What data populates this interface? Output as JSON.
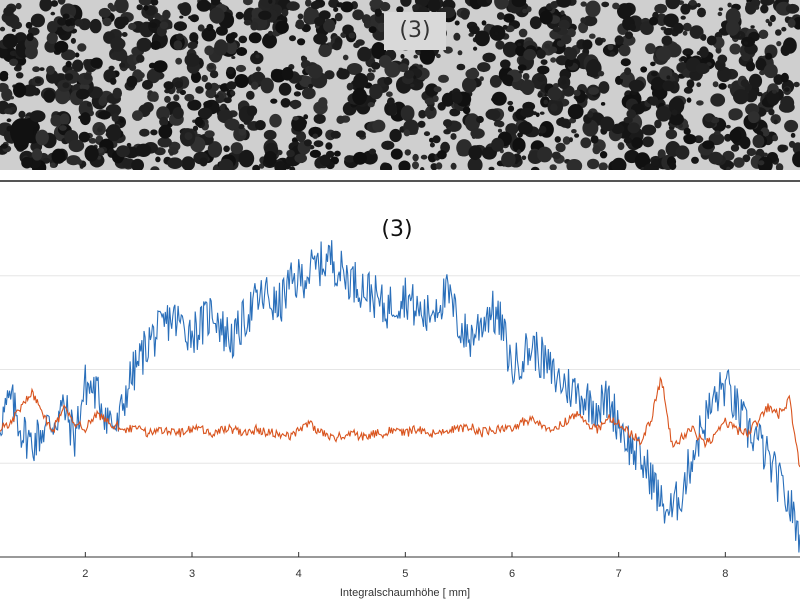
{
  "image_panel": {
    "label": "(3)"
  },
  "chart_data": {
    "type": "line",
    "title": "(3)",
    "xlabel": "Integralschaumhöhe [ mm]",
    "ylabel": "",
    "xlim": [
      1.2,
      8.7
    ],
    "xticks": [
      2,
      3,
      4,
      5,
      6,
      7,
      8
    ],
    "ylim": [
      0,
      1
    ],
    "grid": "horizontal",
    "series": [
      {
        "color": "#2a6fba",
        "x": [
          1.2,
          1.3,
          1.4,
          1.5,
          1.6,
          1.7,
          1.8,
          1.9,
          2.0,
          2.1,
          2.2,
          2.3,
          2.4,
          2.5,
          2.6,
          2.7,
          2.8,
          2.9,
          3.0,
          3.1,
          3.2,
          3.3,
          3.4,
          3.5,
          3.6,
          3.7,
          3.8,
          3.9,
          4.0,
          4.1,
          4.2,
          4.3,
          4.4,
          4.5,
          4.6,
          4.7,
          4.8,
          4.9,
          5.0,
          5.1,
          5.2,
          5.3,
          5.4,
          5.5,
          5.6,
          5.7,
          5.8,
          5.9,
          6.0,
          6.1,
          6.2,
          6.3,
          6.4,
          6.5,
          6.6,
          6.7,
          6.8,
          6.9,
          7.0,
          7.1,
          7.2,
          7.3,
          7.4,
          7.5,
          7.6,
          7.7,
          7.8,
          7.9,
          8.0,
          8.1,
          8.2,
          8.3,
          8.4,
          8.5,
          8.6,
          8.7
        ],
        "y": [
          0.36,
          0.42,
          0.34,
          0.3,
          0.34,
          0.36,
          0.4,
          0.32,
          0.46,
          0.44,
          0.38,
          0.34,
          0.46,
          0.52,
          0.58,
          0.6,
          0.64,
          0.62,
          0.6,
          0.62,
          0.66,
          0.6,
          0.58,
          0.64,
          0.68,
          0.7,
          0.66,
          0.72,
          0.74,
          0.76,
          0.78,
          0.8,
          0.76,
          0.74,
          0.72,
          0.7,
          0.66,
          0.68,
          0.7,
          0.66,
          0.64,
          0.68,
          0.7,
          0.62,
          0.58,
          0.62,
          0.66,
          0.62,
          0.5,
          0.54,
          0.56,
          0.52,
          0.48,
          0.46,
          0.44,
          0.42,
          0.4,
          0.42,
          0.36,
          0.3,
          0.26,
          0.22,
          0.14,
          0.12,
          0.18,
          0.28,
          0.36,
          0.42,
          0.46,
          0.4,
          0.34,
          0.32,
          0.26,
          0.2,
          0.14,
          0.06
        ]
      },
      {
        "color": "#d9541e",
        "x": [
          1.2,
          1.3,
          1.4,
          1.5,
          1.6,
          1.7,
          1.8,
          1.9,
          2.0,
          2.1,
          2.2,
          2.3,
          2.4,
          2.5,
          2.6,
          2.7,
          2.8,
          2.9,
          3.0,
          3.1,
          3.2,
          3.3,
          3.4,
          3.5,
          3.6,
          3.7,
          3.8,
          3.9,
          4.0,
          4.1,
          4.2,
          4.3,
          4.4,
          4.5,
          4.6,
          4.7,
          4.8,
          4.9,
          5.0,
          5.1,
          5.2,
          5.3,
          5.4,
          5.5,
          5.6,
          5.7,
          5.8,
          5.9,
          6.0,
          6.1,
          6.2,
          6.3,
          6.4,
          6.5,
          6.6,
          6.7,
          6.8,
          6.9,
          7.0,
          7.1,
          7.2,
          7.3,
          7.4,
          7.5,
          7.6,
          7.7,
          7.8,
          7.9,
          8.0,
          8.1,
          8.2,
          8.3,
          8.4,
          8.5,
          8.6,
          8.7
        ],
        "y": [
          0.34,
          0.36,
          0.4,
          0.44,
          0.38,
          0.34,
          0.4,
          0.36,
          0.34,
          0.38,
          0.36,
          0.35,
          0.34,
          0.34,
          0.33,
          0.34,
          0.34,
          0.33,
          0.34,
          0.34,
          0.33,
          0.34,
          0.34,
          0.33,
          0.34,
          0.33,
          0.33,
          0.32,
          0.34,
          0.36,
          0.33,
          0.32,
          0.32,
          0.33,
          0.32,
          0.33,
          0.33,
          0.34,
          0.33,
          0.34,
          0.33,
          0.33,
          0.34,
          0.34,
          0.35,
          0.33,
          0.34,
          0.34,
          0.34,
          0.36,
          0.37,
          0.35,
          0.34,
          0.36,
          0.38,
          0.36,
          0.34,
          0.37,
          0.36,
          0.33,
          0.31,
          0.36,
          0.48,
          0.3,
          0.32,
          0.34,
          0.3,
          0.32,
          0.36,
          0.34,
          0.33,
          0.36,
          0.4,
          0.38,
          0.42,
          0.24
        ]
      }
    ]
  }
}
